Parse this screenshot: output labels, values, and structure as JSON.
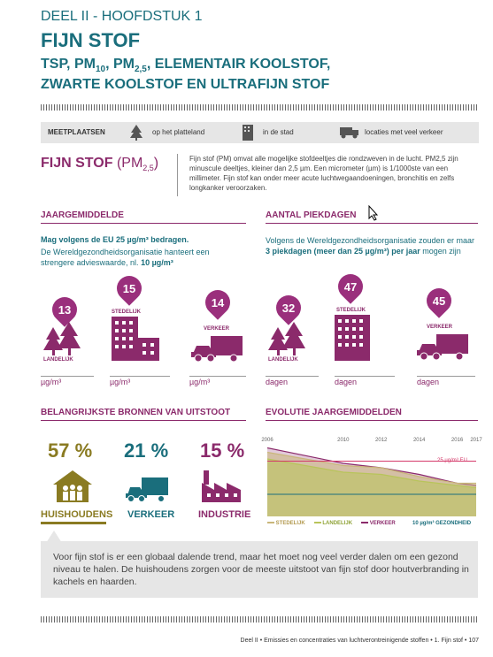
{
  "header": {
    "chapter": "DEEL II - HOOFDSTUK 1",
    "title": "FIJN STOF",
    "subtitle_line1_a": "TSP, PM",
    "subtitle_line1_sub1": "10",
    "subtitle_line1_b": ", PM",
    "subtitle_line1_sub2": "2,5",
    "subtitle_line1_c": ", ELEMENTAIR KOOLSTOF,",
    "subtitle_line2": "ZWARTE KOOLSTOF EN ULTRAFIJN STOF"
  },
  "legend_bar": {
    "label": "MEETPLAATSEN",
    "items": [
      "op het platteland",
      "in de stad",
      "locaties met veel verkeer"
    ]
  },
  "intro": {
    "heading": "FIJN STOF",
    "heading_suffix": "(PM",
    "heading_sub": "2,5",
    "heading_close": ")",
    "text": "Fijn stof (PM) omvat alle mogelijke stofdeeltjes die rondzweven in de lucht. PM2,5 zijn minuscule deeltjes, kleiner dan 2,5 µm. Een micrometer (µm) is 1/1000ste van een millimeter. Fijn stof kan onder meer acute luchtwegaandoeningen, bronchitis en zelfs longkanker veroorzaken."
  },
  "annual": {
    "heading": "JAARGEMIDDELDE",
    "bold_line": "Mag volgens de EU 25 µg/m³ bedragen.",
    "text_a": "De Wereldgezondheidsorganisatie hanteert een strengere advieswaarde, nl. ",
    "text_b": "10 µg/m³",
    "values": [
      {
        "value": "13",
        "label": "LANDELIJK",
        "unit": "µg/m³"
      },
      {
        "value": "15",
        "label": "STEDELIJK",
        "unit": "µg/m³"
      },
      {
        "value": "14",
        "label": "VERKEER",
        "unit": "µg/m³"
      }
    ]
  },
  "peak": {
    "heading": "AANTAL PIEKDAGEN",
    "text_a": "Volgens de Wereldgezondheidsorganisatie zouden er maar ",
    "text_b": "3 piekdagen (meer dan 25 µg/m³) per jaar",
    "text_c": " mogen zijn",
    "values": [
      {
        "value": "32",
        "label": "LANDELIJK",
        "unit": "dagen"
      },
      {
        "value": "47",
        "label": "STEDELIJK",
        "unit": "dagen"
      },
      {
        "value": "45",
        "label": "VERKEER",
        "unit": "dagen"
      }
    ]
  },
  "sources": {
    "heading": "BELANGRIJKSTE BRONNEN VAN UITSTOOT",
    "items": [
      {
        "pct": "57 %",
        "label": "HUISHOUDENS",
        "color": "#8a7b22"
      },
      {
        "pct": "21 %",
        "label": "VERKEER",
        "color": "#1a6e7c"
      },
      {
        "pct": "15 %",
        "label": "INDUSTRIE",
        "color": "#8b2a6b"
      }
    ]
  },
  "evolution": {
    "heading": "EVOLUTIE JAARGEMIDDELDEN",
    "eu_label": "25 µg/m³  EU",
    "who_label": "10 µg/m³  GEZONDHEID",
    "legend": [
      "STEDELIJK",
      "LANDELIJK",
      "VERKEER"
    ]
  },
  "chart_data": {
    "type": "area",
    "x": [
      2006,
      2010,
      2012,
      2014,
      2016,
      2017
    ],
    "x_ticks": [
      "2006",
      "2010",
      "2012",
      "2014",
      "2016",
      "2017"
    ],
    "series": [
      {
        "name": "STEDELIJK",
        "values": [
          29,
          23,
          22,
          18,
          15,
          15
        ]
      },
      {
        "name": "LANDELIJK",
        "values": [
          26,
          20,
          19,
          16,
          14,
          13
        ]
      },
      {
        "name": "VERKEER",
        "values": [
          31,
          24,
          22,
          19,
          15,
          14
        ]
      }
    ],
    "reference_lines": [
      {
        "label": "25 µg/m³ EU",
        "value": 25
      },
      {
        "label": "10 µg/m³ GEZONDHEID",
        "value": 10
      }
    ],
    "ylim": [
      0,
      32
    ],
    "colors": {
      "STEDELIJK": "#c9b77a",
      "LANDELIJK": "#b8c45a",
      "VERKEER": "#8b2a6b"
    }
  },
  "conclusion": "Voor fijn stof is er een globaal dalende trend, maar het moet nog veel verder dalen om een gezond niveau te halen. De huishoudens zorgen voor de meeste uitstoot van fijn stof door houtverbranding in kachels en haarden.",
  "footer": {
    "text": "Deel II  •  Emissies en concentraties van luchtverontreinigende stoffen  •  1. Fijn stof  •  107"
  }
}
